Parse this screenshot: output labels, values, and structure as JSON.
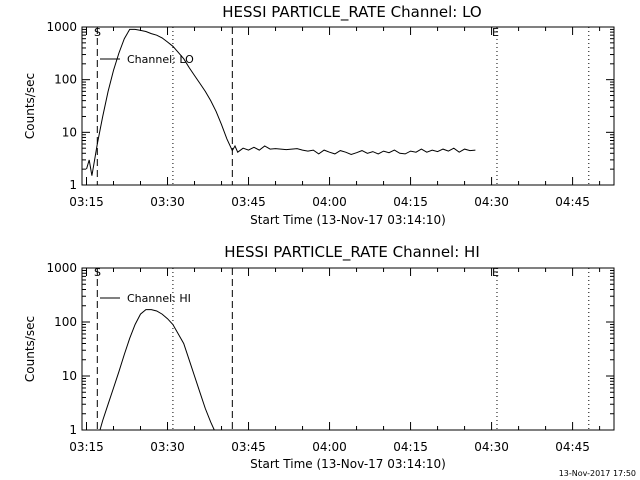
{
  "chart_data": [
    {
      "type": "line",
      "title": "HESSI PARTICLE_RATE Channel: LO",
      "xlabel": "Start Time (13-Nov-17 03:14:10)",
      "ylabel": "Counts/sec",
      "yscale": "log",
      "ylim": [
        1,
        1000
      ],
      "xlim": [
        "03:14:10",
        "04:52:40"
      ],
      "x_ticks": [
        "03:15",
        "03:30",
        "03:45",
        "04:00",
        "04:15",
        "04:30",
        "04:45"
      ],
      "y_ticks": [
        "1",
        "10",
        "100",
        "1000"
      ],
      "legend": "Channel: LO",
      "legend_position": "top-left",
      "markers": {
        "start": "S",
        "end": "E"
      },
      "vlines_dashed": [
        "03:17",
        "03:42"
      ],
      "vlines_dotted": [
        "03:31",
        "04:31",
        "04:48"
      ],
      "series": [
        {
          "x": [
            "03:15:00",
            "03:15:30",
            "03:16:00",
            "03:16:30",
            "03:17:00",
            "03:18:00",
            "03:19:00",
            "03:20:00",
            "03:21:00",
            "03:22:00",
            "03:23:00",
            "03:24:00",
            "03:25:00",
            "03:26:00",
            "03:27:00",
            "03:28:00",
            "03:29:00",
            "03:30:00",
            "03:31:00",
            "03:32:00",
            "03:33:00",
            "03:34:00",
            "03:35:00",
            "03:36:00",
            "03:37:00",
            "03:38:00",
            "03:39:00",
            "03:40:00",
            "03:41:00",
            "03:42:00",
            "03:42:30",
            "03:43:00",
            "03:44:00",
            "03:45:00",
            "03:46:00",
            "03:47:00",
            "03:48:00",
            "03:49:00",
            "03:50:00",
            "03:51:00",
            "03:52:00",
            "03:53:00",
            "03:54:00",
            "03:55:00",
            "03:56:00",
            "03:57:00",
            "03:58:00",
            "03:59:00",
            "04:00:00",
            "04:01:00",
            "04:02:00",
            "04:03:00",
            "04:04:00",
            "04:05:00",
            "04:06:00",
            "04:07:00",
            "04:08:00",
            "04:09:00",
            "04:10:00",
            "04:11:00",
            "04:12:00",
            "04:13:00",
            "04:14:00",
            "04:15:00",
            "04:16:00",
            "04:17:00",
            "04:18:00",
            "04:19:00",
            "04:20:00",
            "04:21:00",
            "04:22:00",
            "04:23:00",
            "04:24:00",
            "04:25:00",
            "04:26:00",
            "04:27:00"
          ],
          "y": [
            2,
            3,
            1.5,
            3,
            6,
            20,
            60,
            150,
            320,
            600,
            900,
            900,
            860,
            820,
            750,
            700,
            620,
            520,
            430,
            330,
            250,
            170,
            120,
            85,
            60,
            40,
            25,
            14,
            7.5,
            4.5,
            5.5,
            4.2,
            5,
            4.6,
            5.2,
            4.6,
            5.5,
            4.8,
            4.9,
            4.8,
            4.7,
            4.8,
            4.9,
            4.6,
            4.4,
            4.6,
            3.9,
            4.6,
            4.2,
            3.9,
            4.5,
            4.2,
            3.8,
            4.1,
            4.5,
            4.0,
            4.3,
            3.9,
            4.4,
            4.1,
            4.6,
            4.0,
            3.9,
            4.4,
            4.2,
            4.8,
            4.2,
            4.6,
            4.3,
            4.8,
            4.4,
            5.0,
            4.2,
            4.8,
            4.5,
            4.6
          ]
        }
      ]
    },
    {
      "type": "line",
      "title": "HESSI PARTICLE_RATE Channel: HI",
      "xlabel": "Start Time (13-Nov-17 03:14:10)",
      "ylabel": "Counts/sec",
      "yscale": "log",
      "ylim": [
        1,
        1000
      ],
      "xlim": [
        "03:14:10",
        "04:52:40"
      ],
      "x_ticks": [
        "03:15",
        "03:30",
        "03:45",
        "04:00",
        "04:15",
        "04:30",
        "04:45"
      ],
      "y_ticks": [
        "1",
        "10",
        "100",
        "1000"
      ],
      "legend": "Channel: HI",
      "legend_position": "top-left",
      "markers": {
        "start": "S",
        "end": "E"
      },
      "vlines_dashed": [
        "03:17",
        "03:42"
      ],
      "vlines_dotted": [
        "03:31",
        "04:31",
        "04:48"
      ],
      "series": [
        {
          "x": [
            "03:17:30",
            "03:18:00",
            "03:19:00",
            "03:20:00",
            "03:21:00",
            "03:22:00",
            "03:23:00",
            "03:24:00",
            "03:25:00",
            "03:26:00",
            "03:27:00",
            "03:28:00",
            "03:29:00",
            "03:30:00",
            "03:31:00",
            "03:32:00",
            "03:33:00",
            "03:34:00",
            "03:35:00",
            "03:36:00",
            "03:37:00",
            "03:38:00",
            "03:38:40"
          ],
          "y": [
            1,
            1.5,
            3,
            6,
            12,
            25,
            50,
            90,
            140,
            170,
            170,
            160,
            140,
            115,
            90,
            60,
            40,
            20,
            10,
            5,
            2.5,
            1.4,
            1
          ]
        }
      ]
    }
  ],
  "footer_timestamp": "13-Nov-2017 17:50"
}
